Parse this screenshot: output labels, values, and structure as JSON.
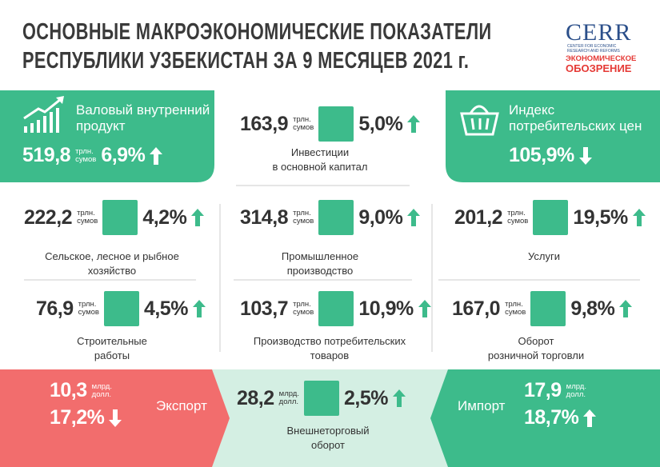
{
  "header": {
    "title": [
      "ОСНОВНЫЕ МАКРОЭКОНОМИЧЕСКИЕ ПОКАЗАТЕЛИ",
      "РЕСПУБЛИКИ УЗБЕКИСТАН ЗА 9 МЕСЯЦЕВ 2021 г."
    ],
    "logo": {
      "name": "CERR",
      "tagline": [
        "CENTER FOR ECONOMIC",
        "RESEARCH AND REFORMS"
      ],
      "brand": [
        "ЭКОНОМИЧЕСКОЕ",
        "ОБОЗРЕНИЕ"
      ]
    }
  },
  "indicators": [
    {
      "label": [
        "Валовый внутренний",
        "продукт"
      ],
      "value": "519,8",
      "unit": [
        "трлн.",
        "сумов"
      ],
      "change": "6,9%",
      "trend": "up"
    },
    {
      "label": [
        "Инвестиции",
        "в основной капитал"
      ],
      "value": "163,9",
      "unit": [
        "трлн.",
        "сумов"
      ],
      "change": "5,0%",
      "trend": "up"
    },
    {
      "label": [
        "Индекс",
        "потребительских цен"
      ],
      "change": "105,9%",
      "trend": "down"
    },
    {
      "label": [
        "Сельское, лесное и рыбное",
        "хозяйство"
      ],
      "value": "222,2",
      "unit": [
        "трлн.",
        "сумов"
      ],
      "change": "4,2%",
      "trend": "up"
    },
    {
      "label": [
        "Промышленное",
        "производство"
      ],
      "value": "314,8",
      "unit": [
        "трлн.",
        "сумов"
      ],
      "change": "9,0%",
      "trend": "up"
    },
    {
      "label": [
        "Услуги"
      ],
      "value": "201,2",
      "unit": [
        "трлн.",
        "сумов"
      ],
      "change": "19,5%",
      "trend": "up"
    },
    {
      "label": [
        "Строительные",
        "работы"
      ],
      "value": "76,9",
      "unit": [
        "трлн.",
        "сумов"
      ],
      "change": "4,5%",
      "trend": "up"
    },
    {
      "label": [
        "Производство потребительских",
        "товаров"
      ],
      "value": "103,7",
      "unit": [
        "трлн.",
        "сумов"
      ],
      "change": "10,9%",
      "trend": "up"
    },
    {
      "label": [
        "Оборот",
        "розничной торговли"
      ],
      "value": "167,0",
      "unit": [
        "трлн.",
        "сумов"
      ],
      "change": "9,8%",
      "trend": "up"
    }
  ],
  "trade": [
    {
      "label": [
        "Экспорт"
      ],
      "value": "10,3",
      "unit": [
        "млрд.",
        "долл."
      ],
      "change": "17,2%",
      "trend": "down"
    },
    {
      "label": [
        "Внешнеторговый",
        "оборот"
      ],
      "value": "28,2",
      "unit": [
        "млрд.",
        "долл."
      ],
      "change": "2,5%",
      "trend": "up"
    },
    {
      "label": [
        "Импорт"
      ],
      "value": "17,9",
      "unit": [
        "млрд.",
        "долл."
      ],
      "change": "18,7%",
      "trend": "up"
    }
  ]
}
